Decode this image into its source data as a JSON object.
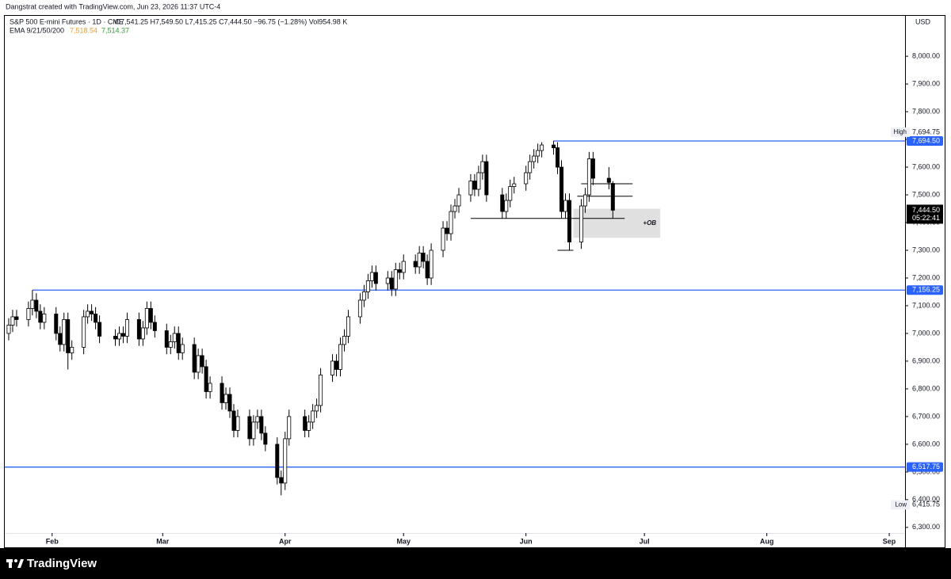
{
  "header": {
    "credit": "Dangstrat created with TradingView.com, Jun 23, 2026 11:37 UTC-4",
    "symbol": "S&P 500 E-mini Futures · 1D · CME",
    "ohlc": "O7,541.25  H7,549.50  L7,415.25  C7,444.50  −96.75 (−1.28%)  Vol954.98 K",
    "indicator": {
      "label": "EMA 9/21/50/200",
      "values": [
        {
          "label": "7,518.54",
          "color": "#f0a030"
        },
        {
          "label": "7,514.37",
          "color": "#3d9a3d"
        }
      ]
    }
  },
  "footer": {
    "brand": "TradingView"
  },
  "chart_data": {
    "type": "candlestick",
    "currency": "USD",
    "up_color": "#ffffff",
    "down_color": "#000000",
    "wick_color": "#000000",
    "xlim": [
      20,
      248
    ],
    "xticks": [
      {
        "value": 32,
        "label": "Feb"
      },
      {
        "value": 60,
        "label": "Mar"
      },
      {
        "value": 91,
        "label": "Apr"
      },
      {
        "value": 121,
        "label": "May"
      },
      {
        "value": 152,
        "label": "Jun"
      },
      {
        "value": 182,
        "label": "Jul"
      },
      {
        "value": 213,
        "label": "Aug"
      },
      {
        "value": 244,
        "label": "Sep"
      }
    ],
    "ylim": [
      6231,
      8146
    ],
    "yticks": [
      {
        "value": 6300,
        "label": "6,300.00"
      },
      {
        "value": 6400,
        "label": "6,400.00"
      },
      {
        "value": 6500,
        "label": "6,500.00"
      },
      {
        "value": 6600,
        "label": "6,600.00"
      },
      {
        "value": 6700,
        "label": "6,700.00"
      },
      {
        "value": 6800,
        "label": "6,800.00"
      },
      {
        "value": 6900,
        "label": "6,900.00"
      },
      {
        "value": 7000,
        "label": "7,000.00"
      },
      {
        "value": 7100,
        "label": "7,100.00"
      },
      {
        "value": 7200,
        "label": "7,200.00"
      },
      {
        "value": 7300,
        "label": "7,300.00"
      },
      {
        "value": 7400,
        "label": "7,400.00"
      },
      {
        "value": 7500,
        "label": "7,500.00"
      },
      {
        "value": 7600,
        "label": "7,600.00"
      },
      {
        "value": 7700,
        "label": "7,700.00"
      },
      {
        "value": 7800,
        "label": "7,800.00"
      },
      {
        "value": 7900,
        "label": "7,900.00"
      },
      {
        "value": 8000,
        "label": "8,000.00"
      }
    ],
    "grid": false,
    "x": [
      21,
      22,
      23,
      26,
      27,
      28,
      29,
      30,
      33,
      34,
      35,
      36,
      37,
      40,
      41,
      42,
      43,
      44,
      48,
      49,
      50,
      51,
      54,
      55,
      56,
      57,
      58,
      61,
      62,
      63,
      64,
      65,
      68,
      69,
      70,
      71,
      72,
      75,
      76,
      77,
      78,
      79,
      82,
      83,
      84,
      85,
      86,
      89,
      90,
      91,
      92,
      96,
      97,
      98,
      99,
      100,
      103,
      104,
      105,
      106,
      107,
      110,
      111,
      112,
      113,
      114,
      117,
      118,
      119,
      120,
      121,
      124,
      125,
      126,
      127,
      128,
      131,
      132,
      133,
      134,
      135,
      138,
      139,
      140,
      141,
      142,
      146,
      147,
      148,
      149,
      152,
      153,
      154,
      155,
      156,
      159,
      160,
      161,
      162,
      163,
      166,
      167,
      168,
      169,
      173,
      174
    ],
    "open": [
      7000,
      7030,
      7060,
      7050,
      7090,
      7120,
      7080,
      7040,
      7070,
      7000,
      6960,
      7050,
      6930,
      6950,
      7060,
      7080,
      7070,
      7040,
      6990,
      6980,
      7000,
      6990,
      7050,
      6980,
      7020,
      7090,
      7040,
      7010,
      6950,
      6970,
      7000,
      6930,
      6960,
      6860,
      6920,
      6880,
      6790,
      6820,
      6750,
      6780,
      6720,
      6650,
      6700,
      6620,
      6680,
      6700,
      6640,
      6600,
      6480,
      6460,
      6620,
      6700,
      6650,
      6680,
      6720,
      6740,
      6850,
      6900,
      6870,
      6960,
      6990,
      7060,
      7120,
      7150,
      7190,
      7220,
      7180,
      7200,
      7160,
      7230,
      7220,
      7260,
      7240,
      7290,
      7260,
      7200,
      7300,
      7380,
      7360,
      7440,
      7460,
      7500,
      7550,
      7520,
      7580,
      7620,
      7500,
      7440,
      7480,
      7530,
      7540,
      7580,
      7620,
      7640,
      7660,
      7680,
      7670,
      7600,
      7440,
      7480,
      7330,
      7460,
      7500,
      7630,
      7560,
      7541.25
    ],
    "high": [
      7055,
      7085,
      7085,
      7115,
      7156.25,
      7145,
      7105,
      7095,
      7095,
      7025,
      7075,
      7075,
      6975,
      7085,
      7105,
      7105,
      7095,
      7065,
      7015,
      7025,
      7025,
      7075,
      7075,
      7045,
      7115,
      7115,
      7065,
      7035,
      6995,
      7025,
      7025,
      6985,
      6985,
      6945,
      6945,
      6905,
      6845,
      6845,
      6805,
      6805,
      6745,
      6725,
      6725,
      6705,
      6725,
      6725,
      6665,
      6625,
      6505,
      6645,
      6725,
      6725,
      6705,
      6745,
      6765,
      6875,
      6925,
      6925,
      6985,
      7015,
      7085,
      7145,
      7175,
      7215,
      7245,
      7245,
      7225,
      7225,
      7255,
      7255,
      7285,
      7285,
      7315,
      7315,
      7285,
      7325,
      7405,
      7405,
      7465,
      7485,
      7525,
      7575,
      7575,
      7605,
      7645,
      7645,
      7525,
      7505,
      7555,
      7565,
      7605,
      7645,
      7665,
      7685,
      7690,
      7694.75,
      7690,
      7625,
      7505,
      7505,
      7485,
      7525,
      7655,
      7655,
      7600,
      7549.5
    ],
    "low": [
      6975,
      7005,
      7025,
      7025,
      7065,
      7055,
      7015,
      7015,
      6975,
      6935,
      6935,
      6870,
      6905,
      6925,
      7035,
      7045,
      7015,
      6965,
      6955,
      6955,
      6965,
      6965,
      6955,
      6955,
      6995,
      7015,
      6985,
      6925,
      6925,
      6945,
      6905,
      6905,
      6835,
      6835,
      6855,
      6765,
      6765,
      6725,
      6725,
      6695,
      6625,
      6625,
      6595,
      6595,
      6655,
      6615,
      6575,
      6455,
      6415.75,
      6435,
      6595,
      6625,
      6625,
      6655,
      6695,
      6715,
      6825,
      6845,
      6845,
      6935,
      6965,
      7035,
      7095,
      7125,
      7165,
      7155,
      7155,
      7135,
      7135,
      7195,
      7195,
      7215,
      7215,
      7235,
      7175,
      7175,
      7275,
      7335,
      7335,
      7415,
      7435,
      7475,
      7495,
      7495,
      7555,
      7475,
      7415,
      7415,
      7455,
      7505,
      7515,
      7555,
      7595,
      7615,
      7635,
      7645,
      7575,
      7415,
      7415,
      7300,
      7305,
      7435,
      7475,
      7535,
      7520,
      7415.25
    ],
    "close": [
      7030,
      7060,
      7050,
      7090,
      7120,
      7080,
      7040,
      7070,
      7000,
      6960,
      7050,
      6930,
      6950,
      7060,
      7080,
      7070,
      7040,
      6990,
      6980,
      7000,
      6990,
      7050,
      6980,
      7020,
      7090,
      7040,
      7010,
      6950,
      6970,
      7000,
      6930,
      6960,
      6860,
      6920,
      6880,
      6790,
      6820,
      6750,
      6780,
      6720,
      6650,
      6700,
      6620,
      6680,
      6700,
      6640,
      6600,
      6480,
      6460,
      6620,
      6700,
      6650,
      6680,
      6720,
      6740,
      6850,
      6900,
      6870,
      6960,
      6990,
      7060,
      7120,
      7150,
      7190,
      7220,
      7180,
      7200,
      7160,
      7230,
      7220,
      7260,
      7240,
      7290,
      7260,
      7200,
      7300,
      7380,
      7360,
      7440,
      7460,
      7500,
      7550,
      7520,
      7580,
      7620,
      7500,
      7440,
      7480,
      7530,
      7540,
      7580,
      7620,
      7640,
      7660,
      7680,
      7670,
      7600,
      7440,
      7480,
      7330,
      7460,
      7500,
      7630,
      7560,
      7545,
      7444.5
    ],
    "levels": [
      {
        "value": 7694.5,
        "label": "7,694.50",
        "color": "#2962ff"
      },
      {
        "value": 7156.25,
        "label": "7,156.25",
        "color": "#2962ff"
      },
      {
        "value": 6517.75,
        "label": "6,517.75",
        "color": "#2962ff"
      }
    ],
    "level_start": [
      159,
      27,
      20
    ],
    "high_marker": {
      "label": "High",
      "value": 7694.75,
      "value_label": "7,694.75"
    },
    "low_marker": {
      "label": "Low",
      "value": 6415.75,
      "value_label": "6,415.75"
    },
    "last_price": {
      "value": 7444.5,
      "label": "7,444.50",
      "countdown": "05:22:41"
    },
    "segments": [
      {
        "x": [
          138,
          177
        ],
        "y": 7415
      },
      {
        "x": [
          166,
          179
        ],
        "y": 7540
      },
      {
        "x": [
          165,
          179
        ],
        "y": 7495
      },
      {
        "x": [
          160,
          164
        ],
        "y": 7300
      }
    ],
    "zone": {
      "label": "+OB",
      "x": [
        164,
        186
      ],
      "y": [
        7345,
        7450
      ],
      "color": "#e0e0e0"
    }
  }
}
